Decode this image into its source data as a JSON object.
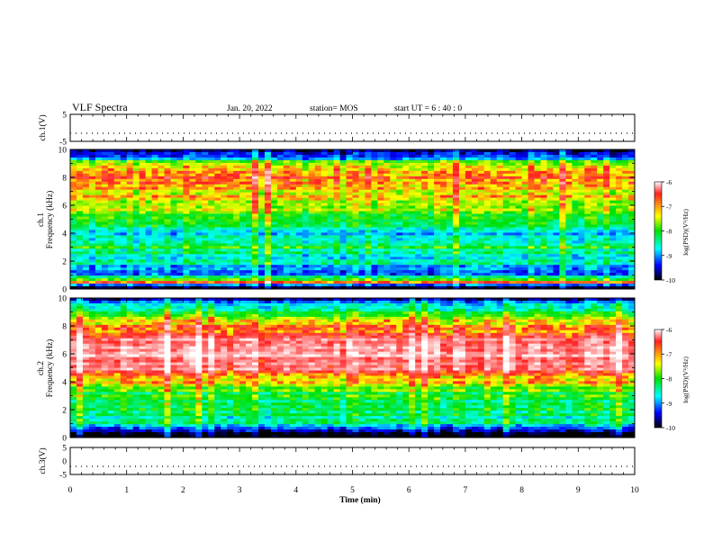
{
  "header": {
    "title": "VLF Spectra",
    "date": "Jan. 20, 2022",
    "station": "station= MOS",
    "start": "start  UT =   6 : 40 : 0"
  },
  "chart_data": [
    {
      "type": "line",
      "panel": "ch1-voltage",
      "ylabel": "ch.1(V)",
      "ylim": [
        -5,
        5
      ],
      "yticks": [
        "5",
        "-5"
      ],
      "x": [
        0,
        10
      ],
      "values": [
        -2,
        -2
      ]
    },
    {
      "type": "heatmap",
      "panel": "ch1-spectrogram",
      "ylabel": "ch.1\nFrequency (kHz)",
      "ylim": [
        0,
        10
      ],
      "yticks": [
        "0",
        "2",
        "4",
        "6",
        "8",
        "10"
      ],
      "xlim": [
        0,
        10
      ],
      "colorbar": {
        "label": "log(PSD)(V²/Hz)",
        "range": [
          -10,
          -6
        ],
        "ticks": [
          "-6",
          "-7",
          "-8",
          "-9",
          "-10"
        ]
      },
      "frequency_profile_kHz": [
        {
          "f": 0.2,
          "log_psd": -10
        },
        {
          "f": 0.5,
          "log_psd": -7
        },
        {
          "f": 1.0,
          "log_psd": -9
        },
        {
          "f": 2.0,
          "log_psd": -8.6
        },
        {
          "f": 3.0,
          "log_psd": -8.2
        },
        {
          "f": 4.0,
          "log_psd": -8.8
        },
        {
          "f": 5.0,
          "log_psd": -8.0
        },
        {
          "f": 6.0,
          "log_psd": -7.6
        },
        {
          "f": 7.0,
          "log_psd": -7.3
        },
        {
          "f": 8.0,
          "log_psd": -6.9
        },
        {
          "f": 9.0,
          "log_psd": -7.6
        },
        {
          "f": 9.6,
          "log_psd": -9.6
        }
      ]
    },
    {
      "type": "heatmap",
      "panel": "ch2-spectrogram",
      "ylabel": "ch.2\nFrequency (kHz)",
      "ylim": [
        0,
        10
      ],
      "yticks": [
        "0",
        "2",
        "4",
        "6",
        "8",
        "10"
      ],
      "xlim": [
        0,
        10
      ],
      "colorbar": {
        "label": "log(PSD)(V²/Hz)",
        "range": [
          -10,
          -6
        ],
        "ticks": [
          "-6",
          "-7",
          "-8",
          "-9",
          "-10"
        ]
      },
      "frequency_profile_kHz": [
        {
          "f": 0.2,
          "log_psd": -10
        },
        {
          "f": 1.0,
          "log_psd": -8.4
        },
        {
          "f": 2.0,
          "log_psd": -8.3
        },
        {
          "f": 3.0,
          "log_psd": -8.1
        },
        {
          "f": 4.0,
          "log_psd": -7.4
        },
        {
          "f": 5.0,
          "log_psd": -6.6
        },
        {
          "f": 6.0,
          "log_psd": -6.3
        },
        {
          "f": 7.0,
          "log_psd": -6.5
        },
        {
          "f": 8.0,
          "log_psd": -7.2
        },
        {
          "f": 9.0,
          "log_psd": -8.0
        },
        {
          "f": 9.8,
          "log_psd": -9.4
        }
      ]
    },
    {
      "type": "line",
      "panel": "ch3-voltage",
      "ylabel": "ch.3(V)",
      "ylim": [
        -5,
        5
      ],
      "yticks": [
        "5",
        "0",
        "-5"
      ],
      "x": [
        0,
        10
      ],
      "values": [
        -2,
        -2
      ]
    }
  ],
  "xaxis": {
    "label": "Time (min)",
    "ticks": [
      "0",
      "1",
      "2",
      "3",
      "4",
      "5",
      "6",
      "7",
      "8",
      "9",
      "10"
    ],
    "xlim": [
      0,
      10
    ]
  }
}
